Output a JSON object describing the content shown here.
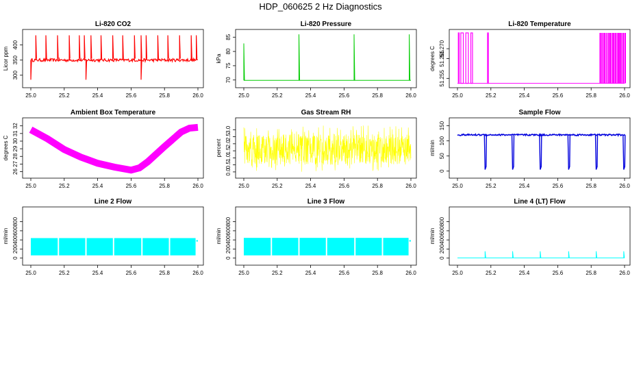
{
  "title": "HDP_060625  2 Hz Diagnostics",
  "chart_data": [
    {
      "type": "line",
      "title": "Li-820 CO2",
      "ylabel": "Licor ppm",
      "xlabel": "",
      "color": "#ff0000",
      "xlim": [
        25.0,
        26.0
      ],
      "ylim": [
        270,
        440
      ],
      "xticks": [
        "25.0",
        "25.2",
        "25.4",
        "25.6",
        "25.8",
        "26.0"
      ],
      "yticks": [
        "300",
        "350",
        "400"
      ],
      "baseline": 350,
      "spikes_up_x": [
        25.03,
        25.09,
        25.16,
        25.23,
        25.29,
        25.32,
        25.36,
        25.42,
        25.49,
        25.55,
        25.62,
        25.66,
        25.69,
        25.76,
        25.82,
        25.89,
        25.96,
        25.99
      ],
      "spike_top": 432,
      "spikes_down_x": [
        25.33,
        25.66,
        25.0
      ],
      "spike_bottom": 285
    },
    {
      "type": "line",
      "title": "Li-820 Pressure",
      "ylabel": "kPa",
      "xlabel": "",
      "color": "#00cc00",
      "xlim": [
        25.0,
        26.0
      ],
      "ylim": [
        68.5,
        86.5
      ],
      "xticks": [
        "25.0",
        "25.2",
        "25.4",
        "25.6",
        "25.8",
        "26.0"
      ],
      "yticks": [
        "70",
        "75",
        "80",
        "85"
      ],
      "baseline": 69.9,
      "spikes": [
        {
          "x": 25.0,
          "y": 82.8
        },
        {
          "x": 25.33,
          "y": 86
        },
        {
          "x": 25.66,
          "y": 86
        },
        {
          "x": 25.99,
          "y": 86
        }
      ]
    },
    {
      "type": "line",
      "title": "Li-820 Temperature",
      "ylabel": "degrees C",
      "xlabel": "",
      "color": "#ff00ff",
      "xlim": [
        25.0,
        26.0
      ],
      "ylim": [
        51.252,
        51.278
      ],
      "xticks": [
        "25.0",
        "25.2",
        "25.4",
        "25.6",
        "25.8",
        "26.0"
      ],
      "yticks": [
        "51.255",
        "51.265",
        "51.270"
      ],
      "low": 51.2525,
      "high": 51.278,
      "high_segments": [
        [
          25.005,
          25.01
        ],
        [
          25.02,
          25.035
        ],
        [
          25.05,
          25.065
        ],
        [
          25.08,
          25.09
        ],
        [
          25.18,
          25.185
        ]
      ],
      "dense_start": 25.85,
      "dense_end": 26.0
    },
    {
      "type": "line",
      "title": "Ambient Box Temperature",
      "ylabel": "degrees C",
      "xlabel": "",
      "color": "#ff00ff",
      "xlim": [
        25.0,
        26.0
      ],
      "ylim": [
        25.6,
        32.6
      ],
      "xticks": [
        "25.0",
        "25.2",
        "25.4",
        "25.6",
        "25.8",
        "26.0"
      ],
      "yticks": [
        "26",
        "27",
        "28",
        "29",
        "30",
        "31",
        "32"
      ],
      "x": [
        25.0,
        25.1,
        25.2,
        25.3,
        25.4,
        25.5,
        25.6,
        25.65,
        25.7,
        25.8,
        25.9,
        25.95,
        26.0
      ],
      "y": [
        31.5,
        30.3,
        28.9,
        27.9,
        27.1,
        26.6,
        26.2,
        26.5,
        27.3,
        29.3,
        31.2,
        31.7,
        31.8
      ]
    },
    {
      "type": "line",
      "title": "Gas Stream RH",
      "ylabel": "percent",
      "xlabel": "",
      "color": "#ffff00",
      "xlim": [
        25.0,
        26.0
      ],
      "ylim": [
        -0.2,
        3.6
      ],
      "xticks": [
        "25.0",
        "25.2",
        "25.4",
        "25.6",
        "25.8",
        "26.0"
      ],
      "yticks": [
        "0.0",
        "0.5",
        "1.0",
        "1.5",
        "2.0",
        "2.5",
        "3.0"
      ],
      "mean": 1.6,
      "band_low": 0.7,
      "band_high": 2.5,
      "noise_min": 0.0,
      "noise_max": 3.3
    },
    {
      "type": "line",
      "title": "Sample Flow",
      "ylabel": "ml/min",
      "xlabel": "",
      "color": "#0000dd",
      "xlim": [
        25.0,
        26.0
      ],
      "ylim": [
        -12,
        165
      ],
      "xticks": [
        "25.0",
        "25.2",
        "25.4",
        "25.6",
        "25.8",
        "26.0"
      ],
      "yticks": [
        "0",
        "50",
        "100",
        "150"
      ],
      "baseline": 120,
      "dips_x": [
        25.165,
        25.33,
        25.495,
        25.665,
        25.83,
        25.995
      ],
      "dip_bottom": 5
    },
    {
      "type": "line",
      "title": "Line 2 Flow",
      "ylabel": "ml/min",
      "xlabel": "",
      "color": "#00ffff",
      "xlim": [
        25.0,
        26.0
      ],
      "ylim": [
        -80,
        1050
      ],
      "xticks": [
        "25.0",
        "25.2",
        "25.4",
        "25.6",
        "25.8",
        "26.0"
      ],
      "yticks": [
        "0",
        "200",
        "400",
        "600",
        "800"
      ],
      "band_low": 60,
      "band_high": 440,
      "gaps_x": [
        25.165,
        25.33,
        25.495,
        25.665,
        25.83
      ],
      "end_value": 380
    },
    {
      "type": "line",
      "title": "Line 3 Flow",
      "ylabel": "ml/min",
      "xlabel": "",
      "color": "#00ffff",
      "xlim": [
        25.0,
        26.0
      ],
      "ylim": [
        -80,
        1050
      ],
      "xticks": [
        "25.0",
        "25.2",
        "25.4",
        "25.6",
        "25.8",
        "26.0"
      ],
      "yticks": [
        "0",
        "200",
        "400",
        "600",
        "800"
      ],
      "band_low": 60,
      "band_high": 445,
      "gaps_x": [
        25.165,
        25.33,
        25.495,
        25.665,
        25.83
      ],
      "end_value": 380
    },
    {
      "type": "line",
      "title": "Line 4 (LT) Flow",
      "ylabel": "ml/min",
      "xlabel": "",
      "color": "#00ffff",
      "xlim": [
        25.0,
        26.0
      ],
      "ylim": [
        -80,
        1050
      ],
      "xticks": [
        "25.0",
        "25.2",
        "25.4",
        "25.6",
        "25.8",
        "26.0"
      ],
      "yticks": [
        "0",
        "200",
        "400",
        "600",
        "800"
      ],
      "baseline": 5,
      "spikes_x": [
        25.165,
        25.33,
        25.495,
        25.665,
        25.83,
        25.995
      ],
      "spike_top": 150
    }
  ]
}
